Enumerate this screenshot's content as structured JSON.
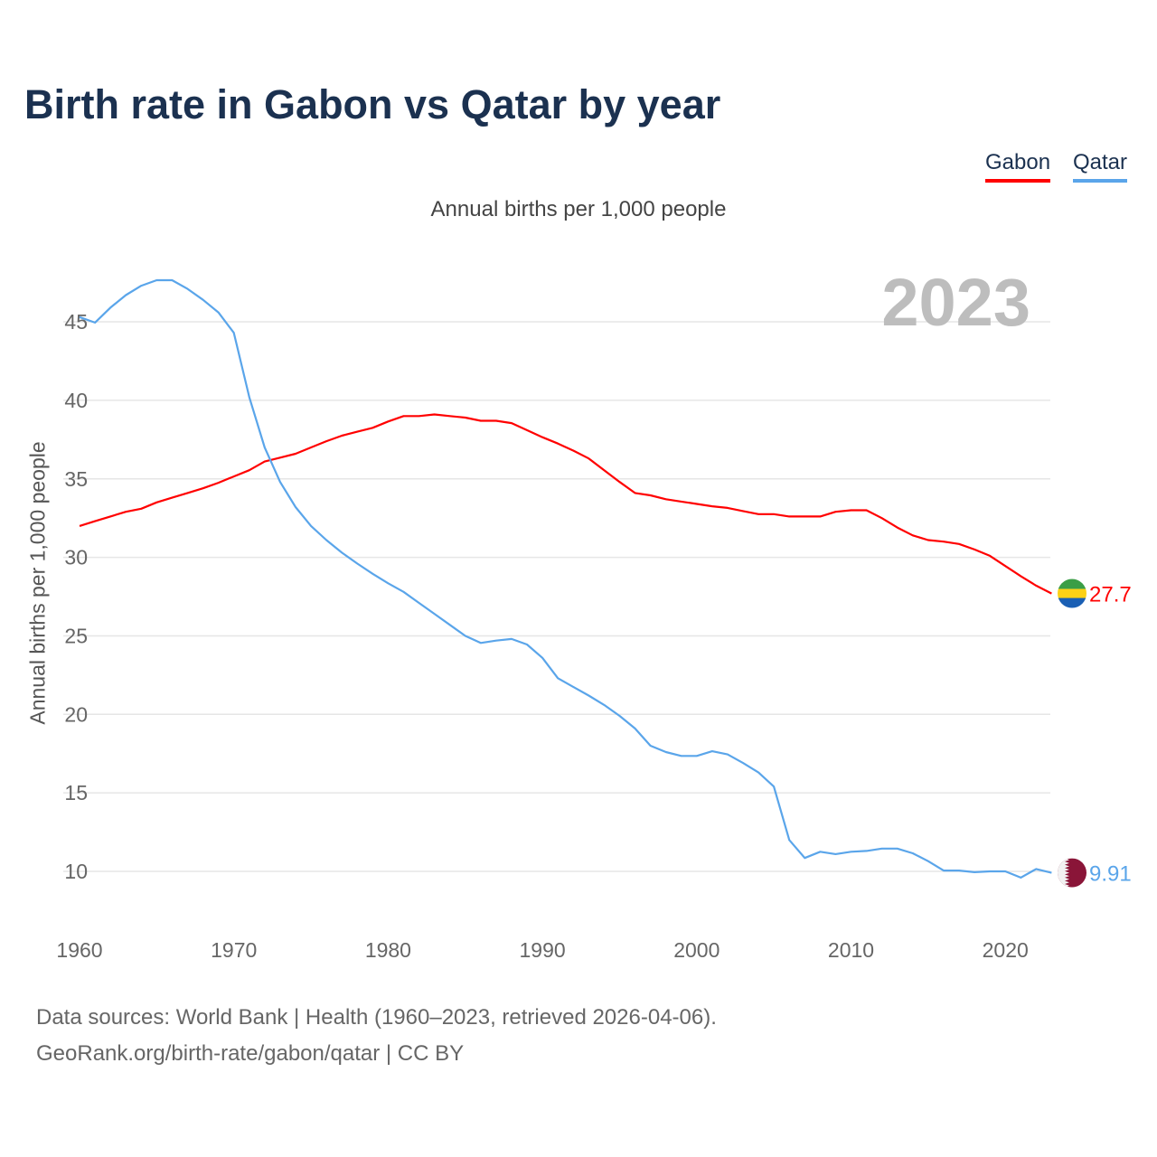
{
  "title": "Birth rate in Gabon vs Qatar by year",
  "subtitle": "Annual births per 1,000 people",
  "footer": {
    "line1": "Data sources: World Bank | Health (1960–2023, retrieved 2026-04-06).",
    "line2": "GeoRank.org/birth-rate/gabon/qatar | CC BY"
  },
  "chart_data": {
    "type": "line",
    "title": "Birth rate in Gabon vs Qatar by year",
    "xlabel": "",
    "ylabel": "Annual births per 1,000 people",
    "year_label": "2023",
    "xlim": [
      1960,
      2023
    ],
    "ylim": [
      10,
      45
    ],
    "xticks": [
      "1960",
      "1970",
      "1980",
      "1990",
      "2000",
      "2010",
      "2020"
    ],
    "yticks": [
      "10",
      "15",
      "20",
      "25",
      "30",
      "35",
      "40",
      "45"
    ],
    "grid": true,
    "legend_position": "top-right",
    "x": [
      1960,
      1961,
      1962,
      1963,
      1964,
      1965,
      1966,
      1967,
      1968,
      1969,
      1970,
      1971,
      1972,
      1973,
      1974,
      1975,
      1976,
      1977,
      1978,
      1979,
      1980,
      1981,
      1982,
      1983,
      1984,
      1985,
      1986,
      1987,
      1988,
      1989,
      1990,
      1991,
      1992,
      1993,
      1994,
      1995,
      1996,
      1997,
      1998,
      1999,
      2000,
      2001,
      2002,
      2003,
      2004,
      2005,
      2006,
      2007,
      2008,
      2009,
      2010,
      2011,
      2012,
      2013,
      2014,
      2015,
      2016,
      2017,
      2018,
      2019,
      2020,
      2021,
      2022,
      2023
    ],
    "series": [
      {
        "name": "Gabon",
        "color": "#ff0000",
        "end_label": "27.7",
        "values": [
          32.0,
          32.3,
          32.6,
          32.9,
          33.1,
          33.5,
          33.8,
          34.1,
          34.4,
          34.75,
          35.15,
          35.55,
          36.1,
          36.35,
          36.6,
          37.0,
          37.4,
          37.75,
          38.0,
          38.25,
          38.65,
          39.0,
          39.0,
          39.1,
          39.0,
          38.9,
          38.7,
          38.7,
          38.55,
          38.1,
          37.65,
          37.25,
          36.8,
          36.3,
          35.55,
          34.8,
          34.1,
          33.95,
          33.7,
          33.55,
          33.4,
          33.25,
          33.15,
          32.95,
          32.75,
          32.75,
          32.6,
          32.6,
          32.6,
          32.9,
          33.0,
          33.0,
          32.5,
          31.9,
          31.4,
          31.1,
          31.0,
          30.85,
          30.5,
          30.1,
          29.45,
          28.8,
          28.2,
          27.7
        ]
      },
      {
        "name": "Qatar",
        "color": "#5aa5ea",
        "end_label": "9.91",
        "values": [
          45.3,
          44.95,
          45.9,
          46.7,
          47.3,
          47.65,
          47.65,
          47.1,
          46.4,
          45.6,
          44.3,
          40.2,
          37.0,
          34.8,
          33.2,
          32.0,
          31.1,
          30.3,
          29.6,
          28.95,
          28.35,
          27.8,
          27.1,
          26.4,
          25.7,
          25.0,
          24.55,
          24.7,
          24.8,
          24.45,
          23.6,
          22.3,
          21.75,
          21.2,
          20.6,
          19.9,
          19.1,
          18.0,
          17.6,
          17.35,
          17.35,
          17.65,
          17.45,
          16.9,
          16.3,
          15.4,
          12.0,
          10.85,
          11.25,
          11.1,
          11.25,
          11.3,
          11.45,
          11.45,
          11.15,
          10.65,
          10.05,
          10.05,
          9.95,
          10.0,
          10.0,
          9.6,
          10.15,
          9.91
        ]
      }
    ]
  }
}
